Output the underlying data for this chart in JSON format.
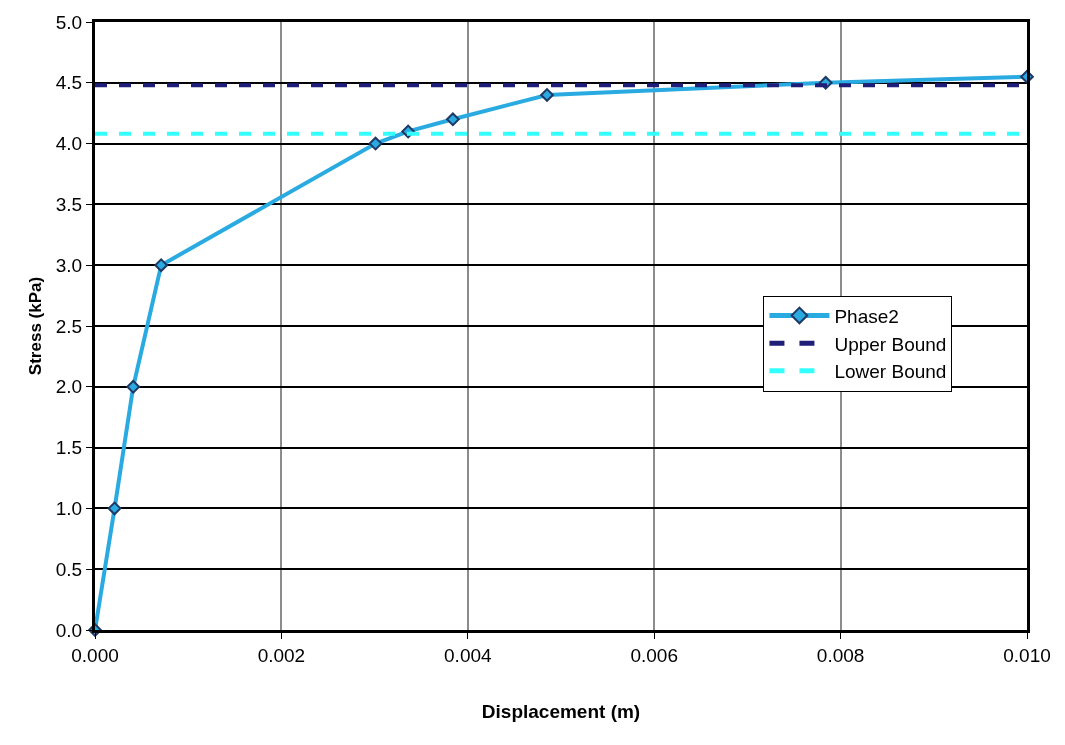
{
  "chart_data": {
    "type": "line",
    "xlabel": "Displacement (m)",
    "ylabel": "Stress (kPa)",
    "xlim": [
      0,
      0.01
    ],
    "xticks": [
      {
        "value": 0,
        "label": "0.000"
      },
      {
        "value": 0.002,
        "label": "0.002"
      },
      {
        "value": 0.004,
        "label": "0.004"
      },
      {
        "value": 0.006,
        "label": "0.006"
      },
      {
        "value": 0.008,
        "label": "0.008"
      },
      {
        "value": 0.01,
        "label": "0.010"
      }
    ],
    "ylim": [
      0,
      5
    ],
    "yticks": [
      {
        "value": 0,
        "label": "0.0"
      },
      {
        "value": 0.5,
        "label": "0.5"
      },
      {
        "value": 1,
        "label": "1.0"
      },
      {
        "value": 1.5,
        "label": "1.5"
      },
      {
        "value": 2,
        "label": "2.0"
      },
      {
        "value": 2.5,
        "label": "2.5"
      },
      {
        "value": 3,
        "label": "3.0"
      },
      {
        "value": 3.5,
        "label": "3.5"
      },
      {
        "value": 4,
        "label": "4.0"
      },
      {
        "value": 4.5,
        "label": "4.5"
      },
      {
        "value": 5,
        "label": "5.0"
      }
    ],
    "grid": true,
    "legend": "right",
    "series": [
      {
        "name": "Phase2",
        "color": "#29abe2",
        "marker": "diamond",
        "line_style": "solid",
        "x": [
          0,
          0.00021,
          0.00041,
          0.00071,
          0.00301,
          0.00336,
          0.00384,
          0.00485,
          0.00784,
          0.01
        ],
        "values": [
          0,
          1.0,
          2.0,
          3.0,
          4.0,
          4.1,
          4.2,
          4.4,
          4.5,
          4.55
        ]
      },
      {
        "name": "Upper Bound",
        "color": "#1f1f7a",
        "marker": "none",
        "line_style": "dashed",
        "x": [
          0,
          0.01
        ],
        "values": [
          4.48,
          4.48
        ]
      },
      {
        "name": "Lower Bound",
        "color": "#33ffff",
        "marker": "none",
        "line_style": "dashed",
        "x": [
          0,
          0.01
        ],
        "values": [
          4.08,
          4.08
        ]
      }
    ]
  }
}
